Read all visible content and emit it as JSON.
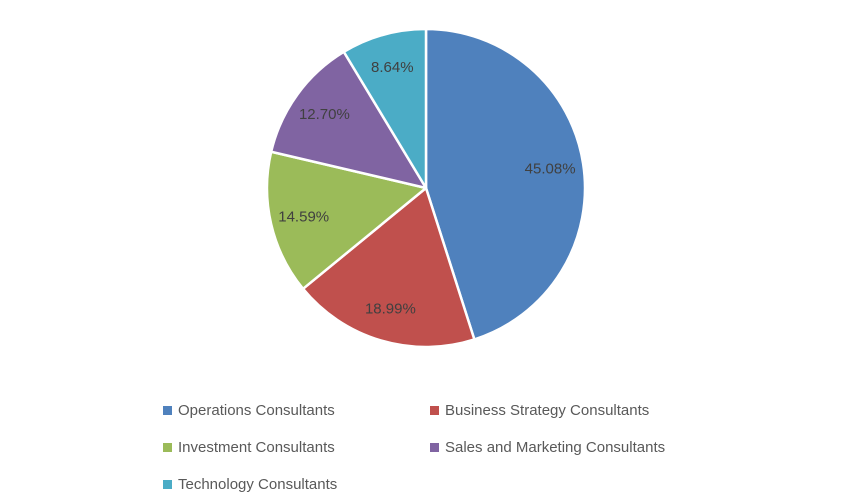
{
  "chart_data": {
    "type": "pie",
    "categories": [
      "Operations Consultants",
      "Business Strategy Consultants",
      "Investment Consultants",
      "Sales and Marketing Consultants",
      "Technology Consultants"
    ],
    "values": [
      45.08,
      18.99,
      14.59,
      12.7,
      8.64
    ],
    "slice_labels": [
      "45.08%",
      "18.99%",
      "14.59%",
      "12.70%",
      "8.64%"
    ],
    "colors": [
      "#4F81BD",
      "#C0504D",
      "#9BBB59",
      "#8064A2",
      "#4BACC6"
    ],
    "title": "",
    "start_angle": "top",
    "direction": "clockwise",
    "separator_color": "#FFFFFF",
    "label_color": "#404040",
    "legend_position": "bottom",
    "legend_columns": 2,
    "legend_text_color": "#595959",
    "background_color": "#FFFFFF"
  }
}
